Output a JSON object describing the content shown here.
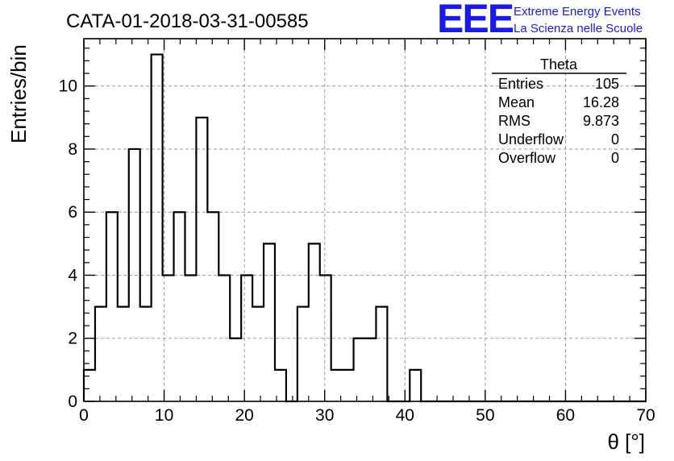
{
  "header": {
    "run_title": "CATA-01-2018-03-31-00585"
  },
  "logo": {
    "mark": "EEE",
    "line1": "Extreme Energy Events",
    "line2": "La Scienza nelle Scuole",
    "color": "#1a1ae6"
  },
  "stats_box": {
    "title": "Theta",
    "rows": [
      {
        "label": "Entries",
        "value": "105"
      },
      {
        "label": "Mean",
        "value": "16.28"
      },
      {
        "label": "RMS",
        "value": "9.873"
      },
      {
        "label": "Underflow",
        "value": "0"
      },
      {
        "label": "Overflow",
        "value": "0"
      }
    ]
  },
  "chart_data": {
    "type": "bar",
    "histogram": true,
    "xlabel": "θ [°]",
    "ylabel": "Entries/bin",
    "xlim": [
      0,
      70
    ],
    "ylim": [
      0,
      11.5
    ],
    "x_ticks": [
      0,
      10,
      20,
      30,
      40,
      50,
      60,
      70
    ],
    "x_tick_labels": [
      "0",
      "10",
      "20",
      "30",
      "40",
      "50",
      "60",
      "70"
    ],
    "y_ticks": [
      0,
      2,
      4,
      6,
      8,
      10
    ],
    "y_tick_labels": [
      "0",
      "2",
      "4",
      "6",
      "8",
      "10"
    ],
    "bin_width": 1.4,
    "bin_start": 0,
    "values": [
      1,
      3,
      6,
      3,
      8,
      3,
      11,
      4,
      6,
      4,
      9,
      6,
      4,
      2,
      4,
      3,
      5,
      1,
      0,
      3,
      5,
      4,
      1,
      1,
      2,
      2,
      3,
      0,
      0,
      1,
      0,
      0,
      0,
      0,
      0,
      0,
      0,
      0,
      0,
      0,
      0,
      0,
      0,
      0,
      0,
      0,
      0,
      0,
      0,
      0
    ],
    "grid": true,
    "line_color": "#000000",
    "grid_color": "#9a9a9a"
  }
}
